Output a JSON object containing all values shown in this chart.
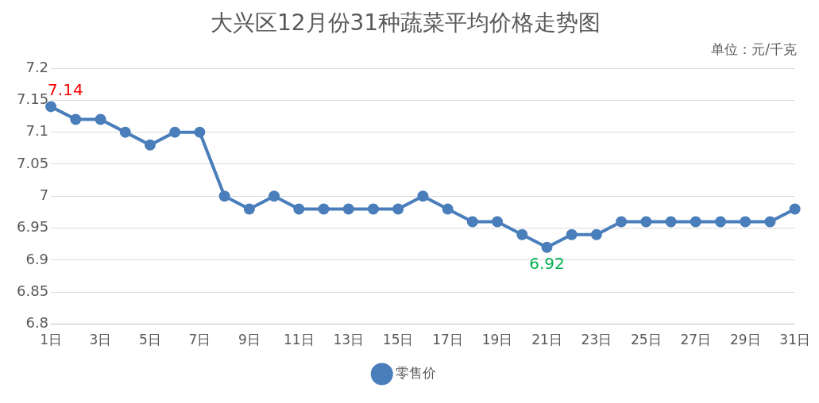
{
  "chart_data": {
    "type": "line",
    "title": "大兴区12月份31种蔬菜平均价格走势图",
    "subtitle": "单位：元/千克",
    "categories": [
      "1日",
      null,
      "3日",
      null,
      "5日",
      null,
      "7日",
      null,
      "9日",
      null,
      "11日",
      null,
      "13日",
      null,
      "15日",
      null,
      "17日",
      null,
      "19日",
      null,
      "21日",
      null,
      "23日",
      null,
      "25日",
      null,
      "27日",
      null,
      "29日",
      null,
      "31日"
    ],
    "series": [
      {
        "name": "零售价",
        "color": "#4a7ebb",
        "values": [
          7.14,
          7.12,
          7.12,
          7.1,
          7.08,
          7.1,
          7.1,
          7.0,
          6.98,
          7.0,
          6.98,
          6.98,
          6.98,
          6.98,
          6.98,
          7.0,
          6.98,
          6.96,
          6.96,
          6.94,
          6.92,
          6.94,
          6.94,
          6.96,
          6.96,
          6.96,
          6.96,
          6.96,
          6.96,
          6.96,
          6.98
        ]
      }
    ],
    "ylim": [
      6.8,
      7.2
    ],
    "yticks": [
      6.8,
      6.85,
      6.9,
      6.95,
      7,
      7.05,
      7.1,
      7.15,
      7.2
    ],
    "annotations": [
      {
        "text": "7.14",
        "x": "1日",
        "y": 7.14
      },
      {
        "text": "6.92",
        "x": "21日",
        "y": 6.92
      }
    ],
    "grid": "y",
    "legend": "bottom",
    "marker": "circle",
    "line_style": "solid"
  }
}
